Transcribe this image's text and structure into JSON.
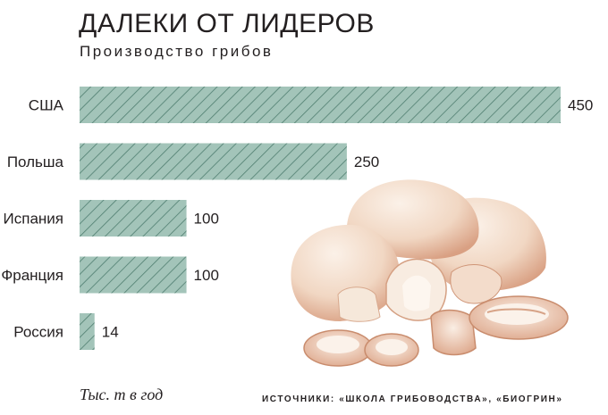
{
  "header": {
    "title": "ДАЛЕКИ ОТ ЛИДЕРОВ",
    "subtitle": "Производство грибов"
  },
  "footer": {
    "units": "Тыс. т в год",
    "sources": "ИСТОЧНИКИ: «ШКОЛА ГРИБОВОДСТВА», «БИОГРИН»"
  },
  "colors": {
    "bar_fill": "#a3c4b9",
    "bar_hatch": "#4f7e70",
    "mushroom_cap": "#f4e2d4",
    "mushroom_shade": "#d9a083"
  },
  "illustration": "mushroom-illustration",
  "chart_data": {
    "type": "bar",
    "orientation": "horizontal",
    "categories": [
      "США",
      "Польша",
      "Испания",
      "Франция",
      "Россия"
    ],
    "values": [
      450,
      250,
      100,
      100,
      14
    ],
    "xlim": [
      0,
      450
    ],
    "grid": false,
    "legend": "none"
  }
}
